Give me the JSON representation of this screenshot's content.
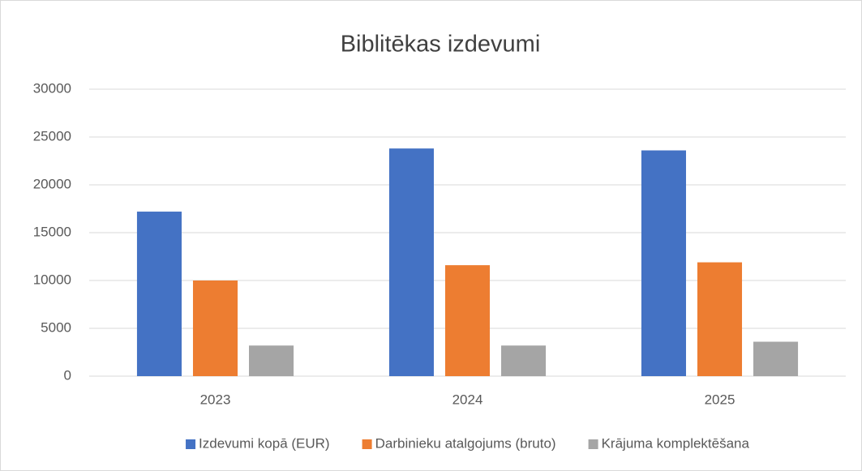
{
  "chart_data": {
    "type": "bar",
    "title": "Biblitēkas izdevumi",
    "categories": [
      "2023",
      "2024",
      "2025"
    ],
    "series": [
      {
        "name": "Izdevumi kopā (EUR)",
        "color": "#4472c4",
        "values": [
          17200,
          23800,
          23600
        ]
      },
      {
        "name": "Darbinieku atalgojums (bruto)",
        "color": "#ed7d31",
        "values": [
          10000,
          11600,
          11900
        ]
      },
      {
        "name": "Krājuma komplektēšana",
        "color": "#a5a5a5",
        "values": [
          3200,
          3200,
          3600
        ]
      }
    ],
    "ylim": [
      0,
      30000
    ],
    "yticks": [
      0,
      5000,
      10000,
      15000,
      20000,
      25000,
      30000
    ],
    "grid": true,
    "legend": "bottom"
  }
}
